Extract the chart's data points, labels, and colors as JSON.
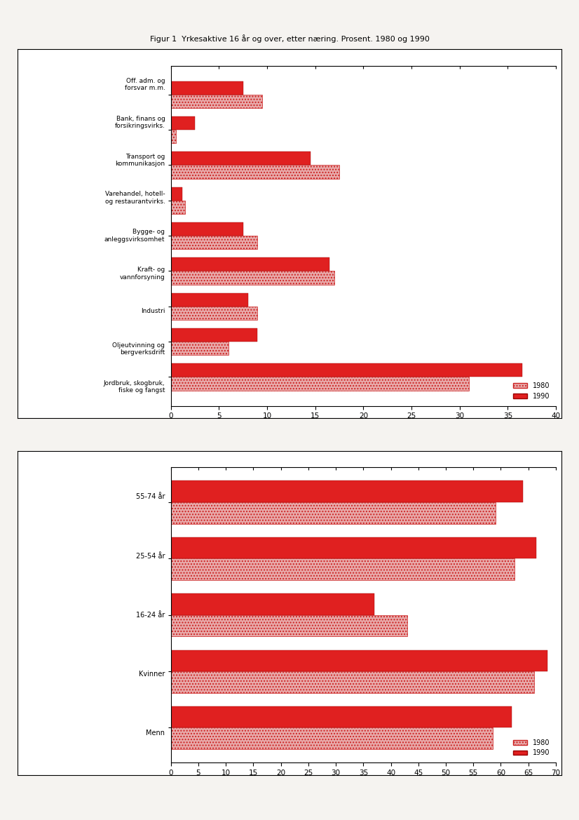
{
  "title1": "Figur 1  Yrkesaktive 16 år og over, etter næring. Prosent. 1980 og 1990",
  "chart1_categories": [
    "Jordbruk, skogbruk,\nfiske og fangst",
    "Oljeutvinning og\nbergverksdrift",
    "Industri",
    "Kraft- og\nvannforsyning",
    "Bygge- og\nanleggsvirksomhet",
    "Varehandel, hotell-\nog restaurantvirks.",
    "Transport og\nkommunikasjon",
    "Bank, finans og\nforsikringsvirks.",
    "Off. adm. og\nforsvar m.m."
  ],
  "chart1_1980": [
    9.5,
    0.5,
    17.5,
    1.5,
    9.0,
    17.0,
    9.0,
    6.0,
    31.0
  ],
  "chart1_1990": [
    7.5,
    2.5,
    14.5,
    1.2,
    7.5,
    16.5,
    8.0,
    9.0,
    36.5
  ],
  "chart2_categories": [
    "Menn",
    "Kvinner",
    "16-24 år",
    "25-54 år",
    "55-74 år"
  ],
  "chart2_1980": [
    59.0,
    62.5,
    43.0,
    66.0,
    58.5
  ],
  "chart2_1990": [
    64.0,
    66.5,
    37.0,
    68.5,
    62.0
  ],
  "legend_1980": "1980",
  "legend_1990": "1990",
  "color_1980": "#e8aaaa",
  "color_1990": "#e02020",
  "hatch_1980": "....",
  "page_background": "#f5f3f0",
  "chart_background": "#ffffff",
  "chart1_xlim": [
    0,
    40
  ],
  "chart1_xticks": [
    0,
    5,
    10,
    15,
    20,
    25,
    30,
    35,
    40
  ],
  "chart2_xlim": [
    0,
    70
  ],
  "chart2_xticks": [
    0,
    5,
    10,
    15,
    20,
    25,
    30,
    35,
    40,
    45,
    50,
    55,
    60,
    65,
    70
  ]
}
